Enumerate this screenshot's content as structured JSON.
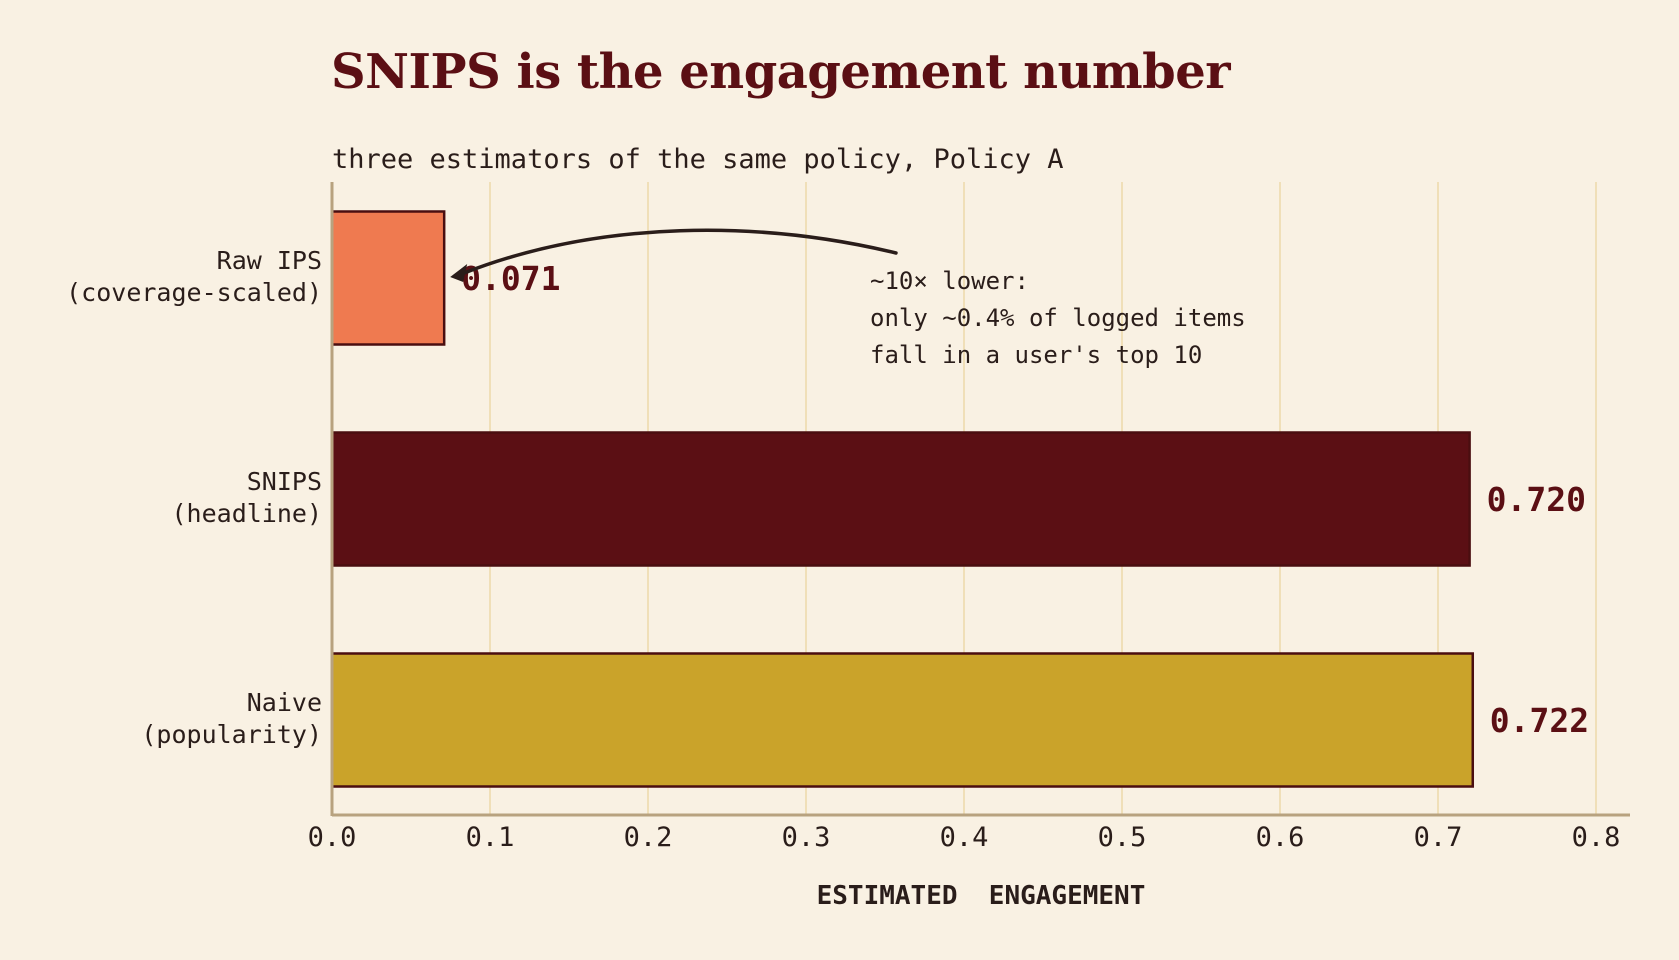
{
  "chart_data": {
    "type": "bar",
    "orientation": "horizontal",
    "title": "SNIPS is the engagement number",
    "subtitle": "three estimators of the same policy, Policy A",
    "xlabel": "ESTIMATED  ENGAGEMENT",
    "xlim": [
      0,
      0.82
    ],
    "xticks": [
      0.0,
      0.1,
      0.2,
      0.3,
      0.4,
      0.5,
      0.6,
      0.7,
      0.8
    ],
    "xtick_labels": [
      "0.0",
      "0.1",
      "0.2",
      "0.3",
      "0.4",
      "0.5",
      "0.6",
      "0.7",
      "0.8"
    ],
    "grid": "vertical",
    "categories": [
      [
        "Raw IPS",
        "(coverage-scaled)"
      ],
      [
        "SNIPS",
        "(headline)"
      ],
      [
        "Naive",
        "(popularity)"
      ]
    ],
    "values": [
      0.071,
      0.72,
      0.722
    ],
    "value_labels": [
      "0.071",
      "0.720",
      "0.722"
    ],
    "bar_colors": [
      "#ef7a50",
      "#5b0f14",
      "#caa32a"
    ],
    "annotation": {
      "lines": [
        "~10× lower:",
        "only ~0.4% of logged items",
        "fall in a user's top 10"
      ],
      "points_to": "Raw IPS (coverage-scaled)"
    }
  },
  "colors": {
    "background": "#f9f1e3",
    "title": "#5b0f14",
    "text": "#2a1d1a",
    "value_label": "#5b0f14",
    "grid": "#f0dfb8",
    "axis": "#b8a27f",
    "bar_edge": "#4a0e10",
    "arrow": "#2a1d1a"
  }
}
